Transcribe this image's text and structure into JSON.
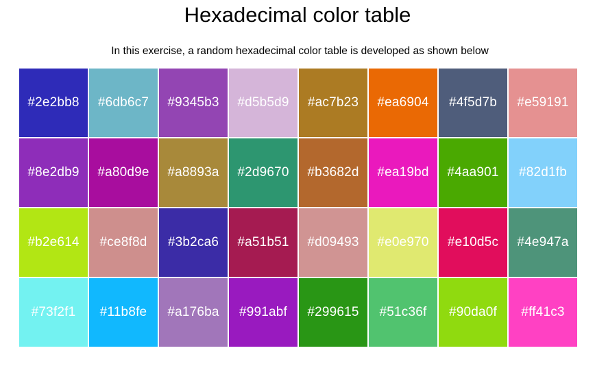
{
  "header": {
    "title": "Hexadecimal color table",
    "subtitle": "In this exercise, a random hexadecimal color table is developed as shown below"
  },
  "color_table": {
    "rows": [
      [
        "#2e2bb8",
        "#6db6c7",
        "#9345b3",
        "#d5b5d9",
        "#ac7b23",
        "#ea6904",
        "#4f5d7b",
        "#e59191"
      ],
      [
        "#8e2db9",
        "#a80d9e",
        "#a8893a",
        "#2d9670",
        "#b3682d",
        "#ea19bd",
        "#4aa901",
        "#82d1fb"
      ],
      [
        "#b2e614",
        "#ce8f8d",
        "#3b2ca6",
        "#a51b51",
        "#d09493",
        "#e0e970",
        "#e10d5c",
        "#4e947a"
      ],
      [
        "#73f2f1",
        "#11b8fe",
        "#a176ba",
        "#991abf",
        "#299615",
        "#51c36f",
        "#90da0f",
        "#ff41c3"
      ]
    ]
  }
}
